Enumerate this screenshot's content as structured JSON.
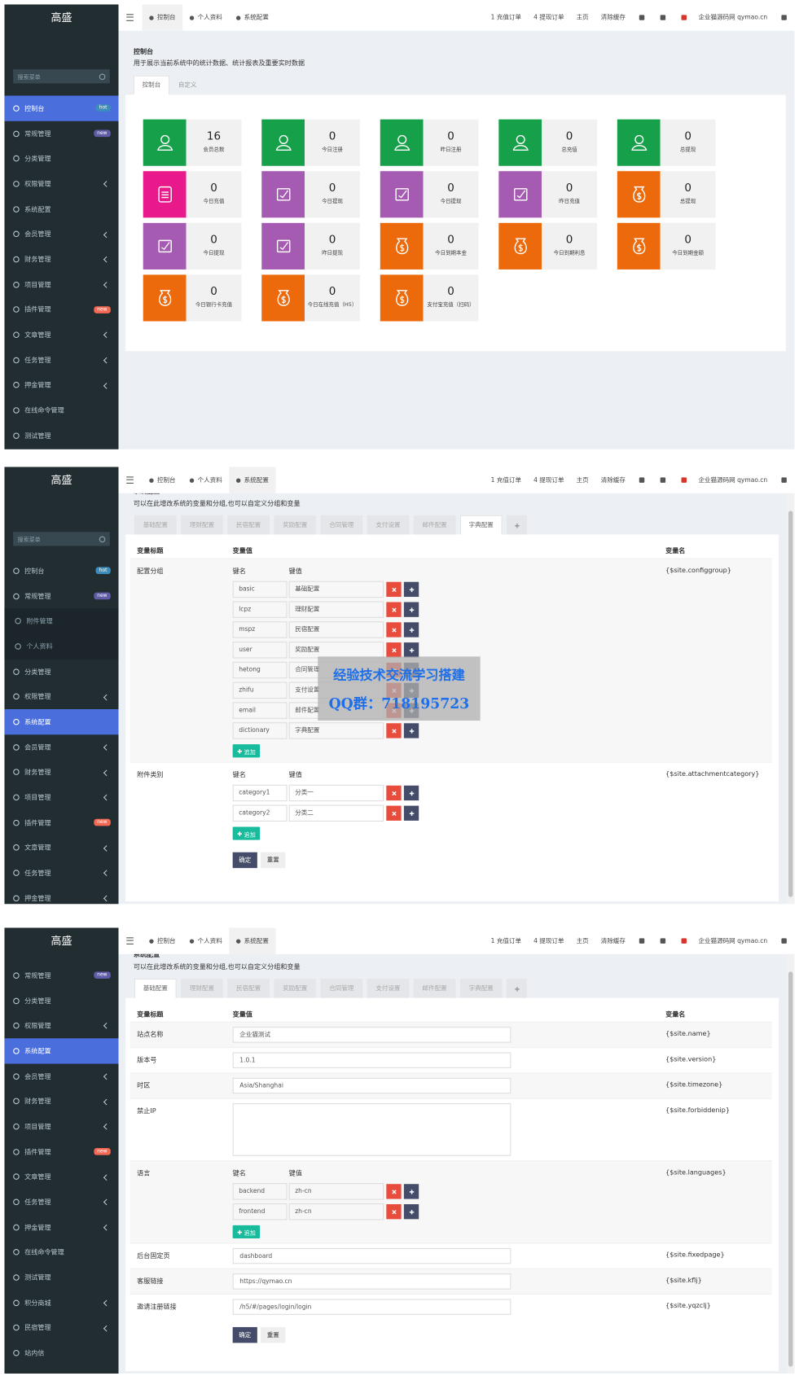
{
  "brand": "高盛",
  "search_placeholder": "搜索菜单",
  "topbar": {
    "tabs": [
      "控制台",
      "个人资料",
      "系统配置"
    ],
    "links": [
      "1 充值订单",
      "4 提现订单",
      "主页",
      "清除缓存"
    ],
    "site": "企业猫源码网 qymao.cn"
  },
  "config_common": {
    "desc": "可以在此增改系统的变量和分组,也可以自定义分组和变量",
    "tabs": [
      "基础配置",
      "理财配置",
      "民宿配置",
      "奖励配置",
      "合同管理",
      "支付设置",
      "邮件配置",
      "字典配置"
    ],
    "columns": [
      "变量标题",
      "变量值",
      "变量名"
    ],
    "key_head": "键名",
    "value_head": "键值",
    "add": "追加",
    "submit": "确定",
    "reset": "重置"
  },
  "panels": [
    {
      "view": "dashboard",
      "active_tab": 0,
      "search": true,
      "menu": [
        {
          "label": "控制台",
          "badge": "hot",
          "badge_color": "#3c8dbc",
          "active": true
        },
        {
          "label": "常规管理",
          "badge": "new",
          "badge_color": "#605ca8"
        },
        {
          "label": "分类管理"
        },
        {
          "label": "权限管理",
          "arrow": true
        },
        {
          "label": "系统配置"
        },
        {
          "label": "会员管理",
          "arrow": true
        },
        {
          "label": "财务管理",
          "arrow": true
        },
        {
          "label": "项目管理",
          "arrow": true
        },
        {
          "label": "插件管理",
          "badge": "new",
          "badge_color": "#f56954"
        },
        {
          "label": "文章管理",
          "arrow": true
        },
        {
          "label": "任务管理",
          "arrow": true
        },
        {
          "label": "押金管理",
          "arrow": true
        },
        {
          "label": "在线命令管理"
        },
        {
          "label": "测试管理"
        }
      ],
      "dashboard": {
        "title": "控制台",
        "desc": "用于展示当前系统中的统计数据、统计报表及重要实时数据",
        "tabs": [
          "控制台",
          "自定义"
        ],
        "tiles": [
          {
            "value": 16,
            "label": "会员总数",
            "color": "#16a04a",
            "icon": "user"
          },
          {
            "value": 0,
            "label": "今日注册",
            "color": "#16a04a",
            "icon": "user"
          },
          {
            "value": 0,
            "label": "昨日注册",
            "color": "#16a04a",
            "icon": "user"
          },
          {
            "value": 0,
            "label": "总充值",
            "color": "#16a04a",
            "icon": "user"
          },
          {
            "value": 0,
            "label": "总提现",
            "color": "#16a04a",
            "icon": "user"
          },
          {
            "value": 0,
            "label": "今日充值",
            "color": "#e8198b",
            "icon": "note"
          },
          {
            "value": 0,
            "label": "今日提现",
            "color": "#a65bb2",
            "icon": "wallet"
          },
          {
            "value": 0,
            "label": "今日提现",
            "color": "#a65bb2",
            "icon": "wallet"
          },
          {
            "value": 0,
            "label": "昨日充值",
            "color": "#a65bb2",
            "icon": "wallet"
          },
          {
            "value": 0,
            "label": "总提现",
            "color": "#ec6a0c",
            "icon": "bag"
          },
          {
            "value": 0,
            "label": "今日提现",
            "color": "#a65bb2",
            "icon": "wallet"
          },
          {
            "value": 0,
            "label": "昨日提现",
            "color": "#a65bb2",
            "icon": "wallet"
          },
          {
            "value": 0,
            "label": "今日到期本金",
            "color": "#ec6a0c",
            "icon": "bag"
          },
          {
            "value": 0,
            "label": "今日到期利息",
            "color": "#ec6a0c",
            "icon": "bag"
          },
          {
            "value": 0,
            "label": "今日到期金额",
            "color": "#ec6a0c",
            "icon": "bag"
          },
          {
            "value": 0,
            "label": "今日银行卡充值",
            "color": "#ec6a0c",
            "icon": "bag"
          },
          {
            "value": 0,
            "label": "今日在线充值（H5）",
            "color": "#ec6a0c",
            "icon": "bag"
          },
          {
            "value": 0,
            "label": "支付宝充值（扫码）",
            "color": "#ec6a0c",
            "icon": "bag"
          }
        ]
      }
    },
    {
      "view": "config",
      "active_tab": 2,
      "search": true,
      "menu": [
        {
          "label": "控制台",
          "badge": "hot",
          "badge_color": "#3c8dbc"
        },
        {
          "label": "常规管理",
          "badge": "new",
          "badge_color": "#605ca8"
        },
        {
          "label": "附件管理",
          "sub": true
        },
        {
          "label": "个人资料",
          "sub": true
        },
        {
          "label": "分类管理"
        },
        {
          "label": "权限管理",
          "arrow": true
        },
        {
          "label": "系统配置",
          "active": true
        },
        {
          "label": "会员管理",
          "arrow": true
        },
        {
          "label": "财务管理",
          "arrow": true
        },
        {
          "label": "项目管理",
          "arrow": true
        },
        {
          "label": "插件管理",
          "badge": "new",
          "badge_color": "#f56954"
        },
        {
          "label": "文章管理",
          "arrow": true
        },
        {
          "label": "任务管理",
          "arrow": true
        },
        {
          "label": "押金管理",
          "arrow": true
        }
      ],
      "config": {
        "title": "系统配置",
        "active": 7,
        "rows": [
          {
            "title": "配置分组",
            "pairs": [
              [
                "basic",
                "基础配置"
              ],
              [
                "lcpz",
                "理财配置"
              ],
              [
                "mspz",
                "民宿配置"
              ],
              [
                "user",
                "奖励配置"
              ],
              [
                "hetong",
                "合同管理"
              ],
              [
                "zhifu",
                "支付设置"
              ],
              [
                "email",
                "邮件配置"
              ],
              [
                "dictionary",
                "字典配置"
              ]
            ],
            "name": "{$site.configgroup}"
          },
          {
            "title": "附件类别",
            "pairs": [
              [
                "category1",
                "分类一"
              ],
              [
                "category2",
                "分类二"
              ]
            ],
            "name": "{$site.attachmentcategory}"
          }
        ]
      },
      "watermark": [
        "经验技术交流学习搭建",
        "QQ群：718195723"
      ]
    },
    {
      "view": "config",
      "active_tab": 2,
      "search": false,
      "menu": [
        {
          "label": "常规管理",
          "badge": "new",
          "badge_color": "#605ca8"
        },
        {
          "label": "分类管理"
        },
        {
          "label": "权限管理",
          "arrow": true
        },
        {
          "label": "系统配置",
          "active": true
        },
        {
          "label": "会员管理",
          "arrow": true
        },
        {
          "label": "财务管理",
          "arrow": true
        },
        {
          "label": "项目管理",
          "arrow": true
        },
        {
          "label": "插件管理",
          "badge": "new",
          "badge_color": "#f56954"
        },
        {
          "label": "文章管理",
          "arrow": true
        },
        {
          "label": "任务管理",
          "arrow": true
        },
        {
          "label": "押金管理",
          "arrow": true
        },
        {
          "label": "在线命令管理"
        },
        {
          "label": "测试管理"
        },
        {
          "label": "积分商城",
          "arrow": true
        },
        {
          "label": "民宿管理",
          "arrow": true
        },
        {
          "label": "站内信"
        }
      ],
      "config": {
        "title": "系统配置",
        "active": 0,
        "rows": [
          {
            "title": "站点名称",
            "value": "企业猫测试",
            "name": "{$site.name}"
          },
          {
            "title": "版本号",
            "value": "1.0.1",
            "name": "{$site.version}"
          },
          {
            "title": "时区",
            "value": "Asia/Shanghai",
            "name": "{$site.timezone}"
          },
          {
            "title": "禁止IP",
            "textarea": true,
            "name": "{$site.forbiddenip}"
          },
          {
            "title": "语言",
            "pairs": [
              [
                "backend",
                "zh-cn"
              ],
              [
                "frontend",
                "zh-cn"
              ]
            ],
            "name": "{$site.languages}"
          },
          {
            "title": "后台固定页",
            "value": "dashboard",
            "name": "{$site.fixedpage}"
          },
          {
            "title": "客服链接",
            "value": "https://qymao.cn",
            "name": "{$site.kflj}"
          },
          {
            "title": "邀请注册链接",
            "value": "/h5/#/pages/login/login",
            "name": "{$site.yqzclj}"
          }
        ]
      }
    }
  ]
}
